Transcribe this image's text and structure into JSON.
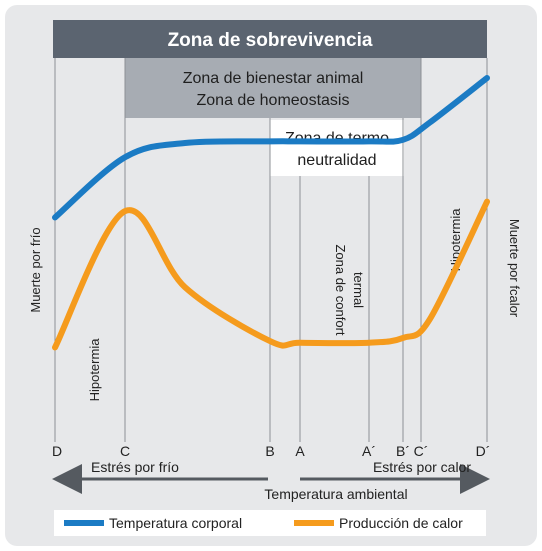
{
  "chart_data": {
    "type": "line",
    "title": "",
    "zones": {
      "survival": "Zona de sobrevivencia",
      "wellbeing_line1": "Zona de bienestar animal",
      "wellbeing_line2": "Zona de homeostasis",
      "thermoneutral_line1": "Zona de termo",
      "thermoneutral_line2": "neutralidad",
      "comfort_line1": "Zona de confort",
      "comfort_line2": "termal"
    },
    "side_labels": {
      "cold_death": "Muerte por frío",
      "heat_death": "Muerte por fcalor",
      "hypothermia_low": "Hipotermia",
      "hypothermia_high": "Hipotermia"
    },
    "x_ticks": [
      "D",
      "C",
      "B",
      "A",
      "A´",
      "B´",
      "C´",
      "D´"
    ],
    "arrows": {
      "cold_stress": "Estrés por frío",
      "heat_stress": "Estrés por calor"
    },
    "xlabel": "Temperatura ambiental",
    "series": [
      {
        "name": "Temperatura corporal",
        "color": "#1b7bc4",
        "values": [
          0.56,
          0.75,
          0.795,
          0.8,
          0.8,
          0.8,
          0.805,
          0.86,
          1.0
        ]
      },
      {
        "name": "Producción de calor",
        "color": "#f59b1d",
        "values": [
          0.15,
          0.58,
          0.34,
          0.17,
          0.165,
          0.165,
          0.18,
          0.24,
          0.61
        ]
      }
    ],
    "x_positions_order": [
      "D",
      "C",
      "",
      "B",
      "A",
      "A´",
      "B´",
      "C´",
      "D´"
    ],
    "legend_position": "bottom",
    "grid": false
  },
  "colors": {
    "panel_bg": "#e7e8ea",
    "survival_bar": "#5b6470",
    "wellbeing_bar": "#a7acb3",
    "body_temp": "#1b7bc4",
    "heat_prod": "#f59b1d"
  }
}
